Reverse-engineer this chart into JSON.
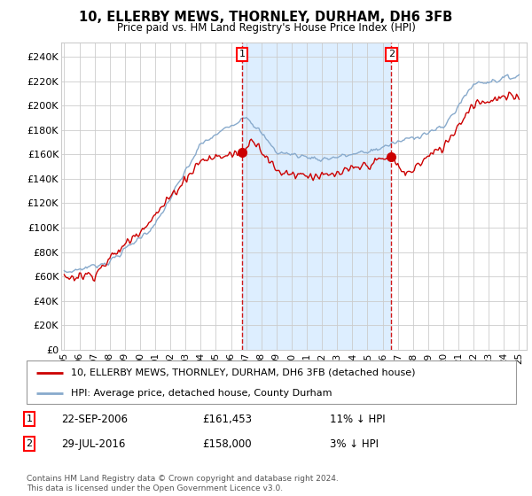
{
  "title": "10, ELLERBY MEWS, THORNLEY, DURHAM, DH6 3FB",
  "subtitle": "Price paid vs. HM Land Registry's House Price Index (HPI)",
  "ylabel_ticks": [
    "£0",
    "£20K",
    "£40K",
    "£60K",
    "£80K",
    "£100K",
    "£120K",
    "£140K",
    "£160K",
    "£180K",
    "£200K",
    "£220K",
    "£240K"
  ],
  "ytick_values": [
    0,
    20000,
    40000,
    60000,
    80000,
    100000,
    120000,
    140000,
    160000,
    180000,
    200000,
    220000,
    240000
  ],
  "ylim": [
    0,
    252000
  ],
  "xlim_start": 1994.8,
  "xlim_end": 2025.5,
  "marker1_x": 2006.72,
  "marker1_y": 161453,
  "marker2_x": 2016.57,
  "marker2_y": 158000,
  "line1_color": "#cc0000",
  "line2_color": "#88aacc",
  "background_fill": "#ddeeff",
  "shade_alpha": 0.35,
  "legend1_text": "10, ELLERBY MEWS, THORNLEY, DURHAM, DH6 3FB (detached house)",
  "legend2_text": "HPI: Average price, detached house, County Durham",
  "marker1_date": "22-SEP-2006",
  "marker1_price": "£161,453",
  "marker1_hpi": "11% ↓ HPI",
  "marker2_date": "29-JUL-2016",
  "marker2_price": "£158,000",
  "marker2_hpi": "3% ↓ HPI",
  "footer": "Contains HM Land Registry data © Crown copyright and database right 2024.\nThis data is licensed under the Open Government Licence v3.0.",
  "xtick_years": [
    1995,
    1996,
    1997,
    1998,
    1999,
    2000,
    2001,
    2002,
    2003,
    2004,
    2005,
    2006,
    2007,
    2008,
    2009,
    2010,
    2011,
    2012,
    2013,
    2014,
    2015,
    2016,
    2017,
    2018,
    2019,
    2020,
    2021,
    2022,
    2023,
    2024,
    2025
  ]
}
